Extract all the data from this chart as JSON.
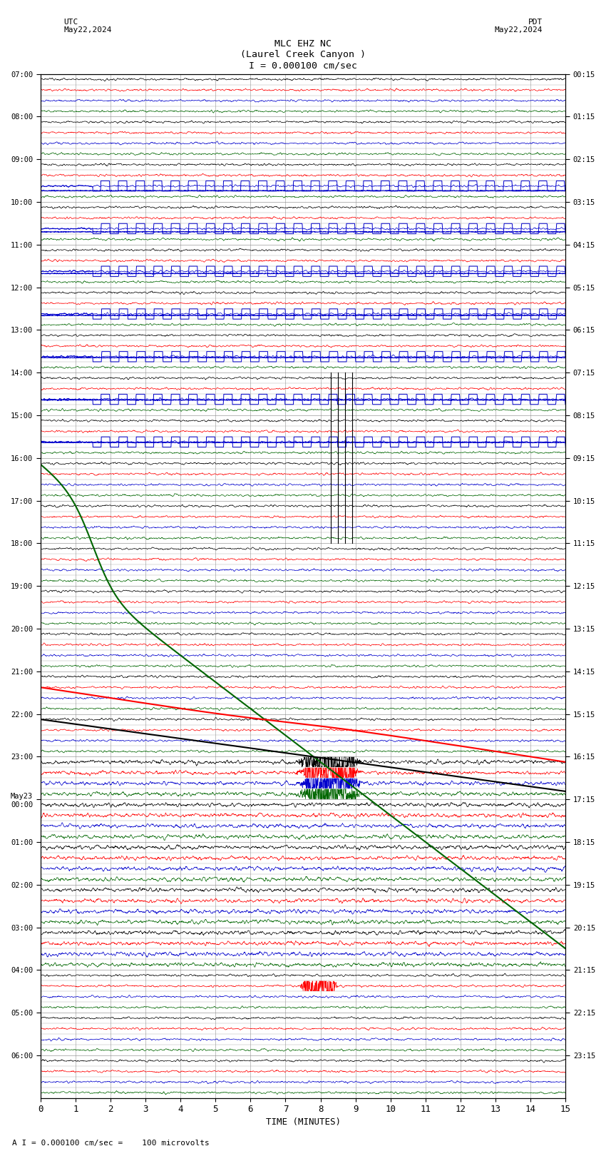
{
  "title_line1": "MLC EHZ NC",
  "title_line2": "(Laurel Creek Canyon )",
  "title_line3": "I = 0.000100 cm/sec",
  "left_header_line1": "UTC",
  "left_header_line2": "May22,2024",
  "right_header_line1": "PDT",
  "right_header_line2": "May22,2024",
  "xlabel": "TIME (MINUTES)",
  "footer": "A I = 0.000100 cm/sec =    100 microvolts",
  "xlim": [
    0,
    15
  ],
  "xticks": [
    0,
    1,
    2,
    3,
    4,
    5,
    6,
    7,
    8,
    9,
    10,
    11,
    12,
    13,
    14,
    15
  ],
  "bg_color": "#ffffff",
  "grid_color": "#888888",
  "trace_colors": [
    "#000000",
    "#ff0000",
    "#0000cc",
    "#006600"
  ],
  "hour_labels_utc": [
    "07:00",
    "08:00",
    "09:00",
    "10:00",
    "11:00",
    "12:00",
    "13:00",
    "14:00",
    "15:00",
    "16:00",
    "17:00",
    "18:00",
    "19:00",
    "20:00",
    "21:00",
    "22:00",
    "23:00",
    "May23\n00:00",
    "01:00",
    "02:00",
    "03:00",
    "04:00",
    "05:00",
    "06:00"
  ],
  "hour_labels_pdt": [
    "00:15",
    "01:15",
    "02:15",
    "03:15",
    "04:15",
    "05:15",
    "06:15",
    "07:15",
    "08:15",
    "09:15",
    "10:15",
    "11:15",
    "12:15",
    "13:15",
    "14:15",
    "15:15",
    "16:15",
    "17:15",
    "18:15",
    "19:15",
    "20:15",
    "21:15",
    "22:15",
    "23:15"
  ],
  "n_hours": 24,
  "traces_per_hour": 4,
  "n_points": 2000,
  "fig_width": 8.5,
  "fig_height": 16.13,
  "dpi": 100
}
